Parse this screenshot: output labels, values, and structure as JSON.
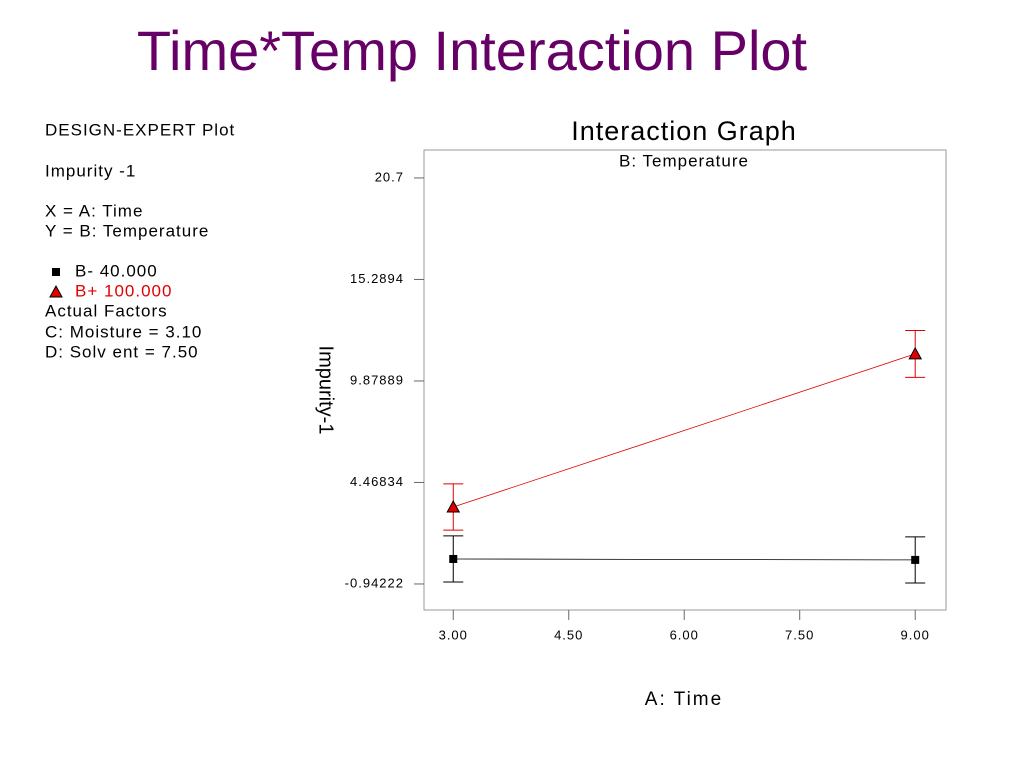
{
  "slide_title": "Time*Temp Interaction Plot",
  "panel": {
    "design": "DESIGN-EXPERT Plot",
    "response": "Impurity -1",
    "x_factor": "X = A: Time",
    "y_factor": "Y = B: Temperature",
    "actual_factors": "Actual Factors",
    "factors": [
      "C: Moisture = 3.10",
      "D: Solv ent = 7.50"
    ]
  },
  "chart_data": {
    "type": "line",
    "title": "Interaction Graph",
    "subtitle": "B: Temperature",
    "x_label": "A: Time",
    "y_label": "Impurity-1",
    "x": [
      3,
      9
    ],
    "series": [
      {
        "name": "B- 40.000",
        "color": "#000000",
        "marker": "square",
        "values": [
          0.39,
          0.34
        ],
        "errors": [
          1.23,
          1.23
        ]
      },
      {
        "name": "B+ 100.000",
        "color": "#e00000",
        "marker": "triangle",
        "values": [
          3.16,
          11.32
        ],
        "errors": [
          1.23,
          1.25
        ]
      }
    ],
    "xlim": [
      2.62,
      9.4
    ],
    "ylim": [
      -2.33,
      22.19
    ],
    "xticks": [
      {
        "value": 3,
        "label": "3.00"
      },
      {
        "value": 4.5,
        "label": "4.50"
      },
      {
        "value": 6,
        "label": "6.00"
      },
      {
        "value": 7.5,
        "label": "7.50"
      },
      {
        "value": 9,
        "label": "9.00"
      }
    ],
    "yticks": [
      -0.94222,
      4.46834,
      9.87889,
      15.2894,
      20.7
    ]
  }
}
